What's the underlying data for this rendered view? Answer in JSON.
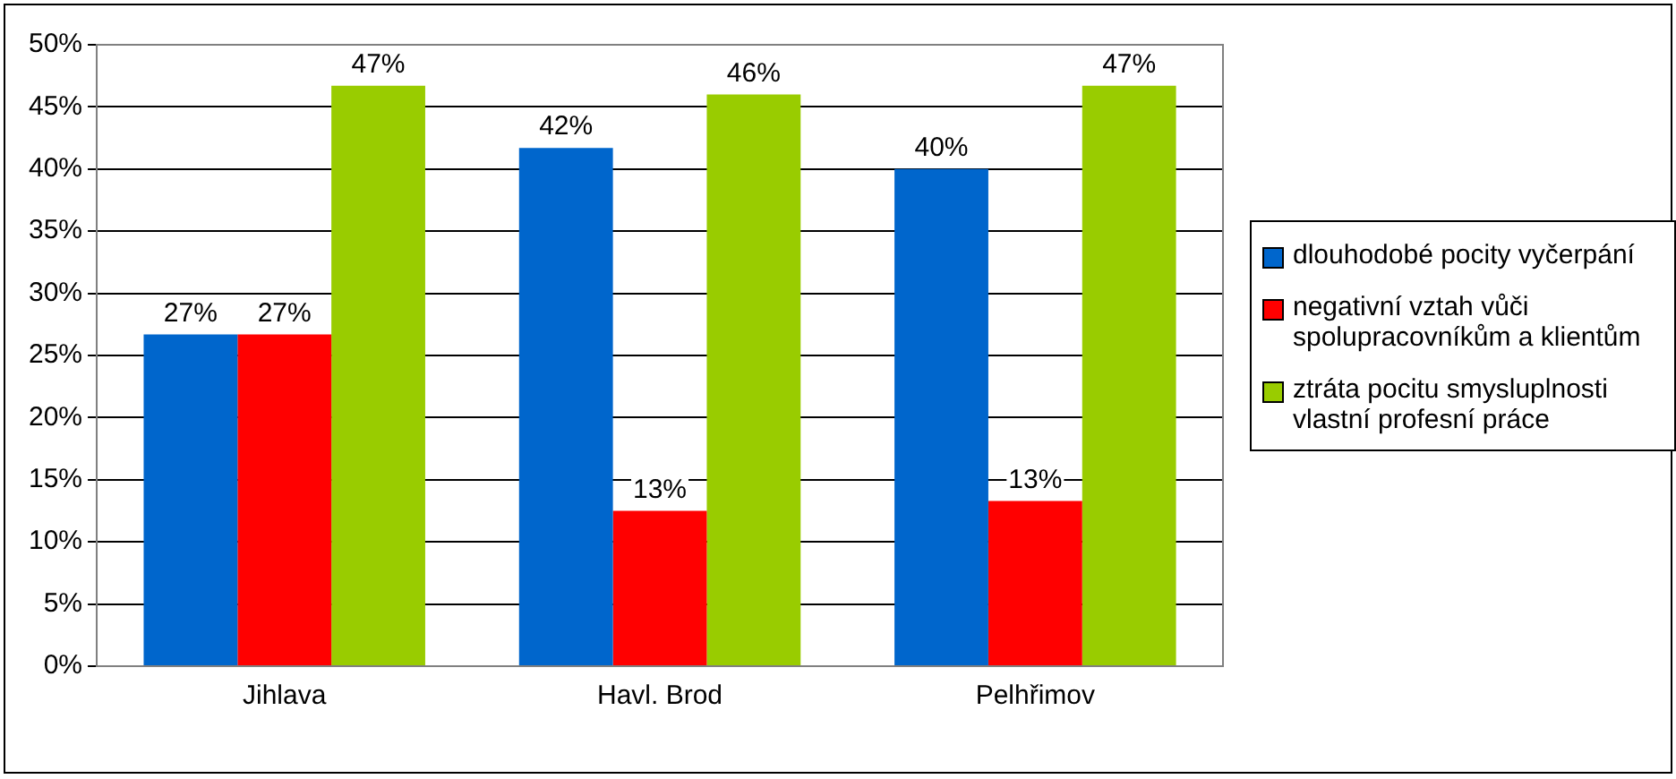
{
  "chart_data": {
    "type": "bar",
    "categories": [
      "Jihlava",
      "Havl. Brod",
      "Pelhřimov"
    ],
    "series": [
      {
        "name": "dlouhodobé pocity vyčerpání",
        "color": "#0066cc",
        "values": [
          26.7,
          41.7,
          40
        ],
        "value_labels": [
          "27%",
          "42%",
          "40%"
        ]
      },
      {
        "name": "negativní vztah vůči spolupracovníkům a klientům",
        "color": "#ff0000",
        "values": [
          26.7,
          12.5,
          13.3
        ],
        "value_labels": [
          "27%",
          "13%",
          "13%"
        ]
      },
      {
        "name": "ztráta pocitu smysluplnosti vlastní profesní práce",
        "color": "#99cc00",
        "values": [
          46.7,
          46,
          46.7
        ],
        "value_labels": [
          "47%",
          "46%",
          "47%"
        ]
      }
    ],
    "ylim": [
      0,
      50
    ],
    "yticks": [
      {
        "value": 0,
        "label": "0%"
      },
      {
        "value": 5,
        "label": "5%"
      },
      {
        "value": 10,
        "label": "10%"
      },
      {
        "value": 15,
        "label": "15%"
      },
      {
        "value": 20,
        "label": "20%"
      },
      {
        "value": 25,
        "label": "25%"
      },
      {
        "value": 30,
        "label": "30%"
      },
      {
        "value": 35,
        "label": "35%"
      },
      {
        "value": 40,
        "label": "40%"
      },
      {
        "value": 45,
        "label": "45%"
      },
      {
        "value": 50,
        "label": "50%"
      }
    ],
    "grid": "y",
    "legend": "right"
  }
}
